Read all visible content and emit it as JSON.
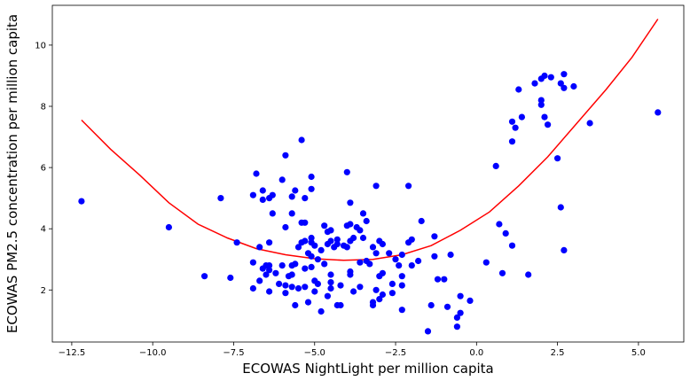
{
  "chart_data": {
    "type": "scatter",
    "title": "",
    "xlabel": "ECOWAS NightLight per million capita",
    "ylabel": "ECOWAS PM2.5 concentration per million capita",
    "xlim": [
      -13.1,
      6.4
    ],
    "ylim": [
      0.3,
      11.3
    ],
    "grid": false,
    "x_ticks": [
      -12.5,
      -10.0,
      -7.5,
      -5.0,
      -2.5,
      0.0,
      2.5,
      5.0
    ],
    "x_tick_labels": [
      "−12.5",
      "−10.0",
      "−7.5",
      "−5.0",
      "−2.5",
      "0.0",
      "2.5",
      "5.0"
    ],
    "y_ticks": [
      2,
      4,
      6,
      8,
      10
    ],
    "y_tick_labels": [
      "2",
      "4",
      "6",
      "8",
      "10"
    ],
    "colors": {
      "points": "#0000ff",
      "fit_line": "#ff0000"
    },
    "series": [
      {
        "kind": "scatter",
        "points": [
          [
            -12.2,
            4.9
          ],
          [
            -9.5,
            4.05
          ],
          [
            -8.4,
            2.45
          ],
          [
            -7.9,
            5.0
          ],
          [
            -7.6,
            2.4
          ],
          [
            -7.4,
            3.55
          ],
          [
            -6.9,
            5.1
          ],
          [
            -6.9,
            2.9
          ],
          [
            -6.9,
            2.05
          ],
          [
            -6.8,
            5.8
          ],
          [
            -6.7,
            3.4
          ],
          [
            -6.7,
            2.3
          ],
          [
            -6.6,
            5.25
          ],
          [
            -6.6,
            4.95
          ],
          [
            -6.6,
            2.7
          ],
          [
            -6.5,
            2.5
          ],
          [
            -6.5,
            2.8
          ],
          [
            -6.4,
            5.0
          ],
          [
            -6.4,
            3.55
          ],
          [
            -6.4,
            2.8
          ],
          [
            -6.4,
            2.65
          ],
          [
            -6.4,
            1.95
          ],
          [
            -6.3,
            5.1
          ],
          [
            -6.3,
            4.5
          ],
          [
            -6.2,
            2.55
          ],
          [
            -6.1,
            2.2
          ],
          [
            -6.0,
            5.6
          ],
          [
            -6.0,
            2.8
          ],
          [
            -5.9,
            6.4
          ],
          [
            -5.9,
            4.05
          ],
          [
            -5.9,
            2.15
          ],
          [
            -5.9,
            1.9
          ],
          [
            -5.8,
            2.45
          ],
          [
            -5.7,
            5.05
          ],
          [
            -5.7,
            4.5
          ],
          [
            -5.7,
            2.8
          ],
          [
            -5.7,
            2.5
          ],
          [
            -5.7,
            2.1
          ],
          [
            -5.6,
            5.25
          ],
          [
            -5.6,
            2.85
          ],
          [
            -5.6,
            1.5
          ],
          [
            -5.5,
            3.4
          ],
          [
            -5.5,
            2.05
          ],
          [
            -5.4,
            6.9
          ],
          [
            -5.4,
            4.2
          ],
          [
            -5.4,
            3.55
          ],
          [
            -5.3,
            5.0
          ],
          [
            -5.3,
            4.2
          ],
          [
            -5.3,
            3.6
          ],
          [
            -5.3,
            2.7
          ],
          [
            -5.3,
            2.1
          ],
          [
            -5.2,
            3.2
          ],
          [
            -5.2,
            1.6
          ],
          [
            -5.1,
            5.7
          ],
          [
            -5.1,
            5.3
          ],
          [
            -5.1,
            3.7
          ],
          [
            -5.1,
            3.55
          ],
          [
            -5.1,
            3.1
          ],
          [
            -5.1,
            2.75
          ],
          [
            -5.0,
            3.45
          ],
          [
            -5.0,
            2.3
          ],
          [
            -5.0,
            1.95
          ],
          [
            -4.9,
            3.0
          ],
          [
            -4.9,
            2.2
          ],
          [
            -4.8,
            1.3
          ],
          [
            -4.8,
            3.3
          ],
          [
            -4.7,
            4.1
          ],
          [
            -4.7,
            2.85
          ],
          [
            -4.6,
            3.9
          ],
          [
            -4.6,
            3.5
          ],
          [
            -4.6,
            1.8
          ],
          [
            -4.5,
            3.95
          ],
          [
            -4.5,
            3.6
          ],
          [
            -4.5,
            2.5
          ],
          [
            -4.5,
            2.25
          ],
          [
            -4.5,
            2.05
          ],
          [
            -4.4,
            3.4
          ],
          [
            -4.3,
            1.5
          ],
          [
            -4.3,
            3.65
          ],
          [
            -4.3,
            3.5
          ],
          [
            -4.2,
            1.5
          ],
          [
            -4.2,
            2.15
          ],
          [
            -4.1,
            3.45
          ],
          [
            -4.0,
            5.85
          ],
          [
            -4.0,
            4.1
          ],
          [
            -4.0,
            3.4
          ],
          [
            -3.9,
            4.85
          ],
          [
            -3.9,
            4.15
          ],
          [
            -3.9,
            3.6
          ],
          [
            -3.9,
            2.6
          ],
          [
            -3.9,
            2.5
          ],
          [
            -3.8,
            3.7
          ],
          [
            -3.8,
            1.95
          ],
          [
            -3.7,
            4.05
          ],
          [
            -3.6,
            3.95
          ],
          [
            -3.6,
            2.1
          ],
          [
            -3.6,
            2.9
          ],
          [
            -3.5,
            4.5
          ],
          [
            -3.5,
            3.7
          ],
          [
            -3.4,
            4.25
          ],
          [
            -3.4,
            2.95
          ],
          [
            -3.3,
            2.85
          ],
          [
            -3.2,
            3.4
          ],
          [
            -3.2,
            1.6
          ],
          [
            -3.2,
            1.5
          ],
          [
            -3.1,
            5.4
          ],
          [
            -3.1,
            3.2
          ],
          [
            -3.1,
            2.0
          ],
          [
            -3.0,
            3.6
          ],
          [
            -3.0,
            2.45
          ],
          [
            -3.0,
            1.7
          ],
          [
            -2.9,
            3.5
          ],
          [
            -2.9,
            2.55
          ],
          [
            -2.9,
            1.85
          ],
          [
            -2.7,
            3.2
          ],
          [
            -2.6,
            2.2
          ],
          [
            -2.6,
            1.9
          ],
          [
            -2.5,
            3.0
          ],
          [
            -2.4,
            2.8
          ],
          [
            -2.3,
            3.15
          ],
          [
            -2.3,
            2.45
          ],
          [
            -2.3,
            2.15
          ],
          [
            -2.3,
            1.35
          ],
          [
            -2.1,
            5.4
          ],
          [
            -2.1,
            3.55
          ],
          [
            -2.0,
            3.65
          ],
          [
            -2.0,
            2.8
          ],
          [
            -1.8,
            2.95
          ],
          [
            -1.7,
            4.25
          ],
          [
            -1.5,
            0.65
          ],
          [
            -1.4,
            1.5
          ],
          [
            -1.3,
            3.75
          ],
          [
            -1.3,
            3.1
          ],
          [
            -1.2,
            2.35
          ],
          [
            -1.0,
            2.35
          ],
          [
            -0.9,
            1.45
          ],
          [
            -0.8,
            3.15
          ],
          [
            -0.6,
            1.1
          ],
          [
            -0.6,
            0.8
          ],
          [
            -0.5,
            1.25
          ],
          [
            -0.5,
            1.8
          ],
          [
            -0.2,
            1.65
          ],
          [
            0.3,
            2.9
          ],
          [
            0.6,
            6.05
          ],
          [
            0.7,
            4.15
          ],
          [
            0.8,
            2.55
          ],
          [
            0.9,
            3.85
          ],
          [
            1.1,
            7.5
          ],
          [
            1.1,
            6.85
          ],
          [
            1.1,
            3.45
          ],
          [
            1.2,
            7.3
          ],
          [
            1.3,
            8.55
          ],
          [
            1.4,
            7.65
          ],
          [
            1.6,
            2.5
          ],
          [
            1.8,
            8.75
          ],
          [
            2.0,
            8.2
          ],
          [
            2.0,
            8.05
          ],
          [
            2.0,
            8.9
          ],
          [
            2.1,
            7.65
          ],
          [
            2.1,
            9.0
          ],
          [
            2.2,
            7.4
          ],
          [
            2.3,
            8.95
          ],
          [
            2.5,
            6.3
          ],
          [
            2.6,
            8.75
          ],
          [
            2.6,
            4.7
          ],
          [
            2.7,
            9.05
          ],
          [
            2.7,
            8.6
          ],
          [
            2.7,
            3.3
          ],
          [
            3.0,
            8.65
          ],
          [
            3.5,
            7.45
          ],
          [
            5.6,
            7.8
          ]
        ]
      },
      {
        "kind": "line",
        "points": [
          [
            -12.2,
            7.55
          ],
          [
            -11.3,
            6.6
          ],
          [
            -10.4,
            5.75
          ],
          [
            -9.5,
            4.85
          ],
          [
            -8.6,
            4.15
          ],
          [
            -7.7,
            3.7
          ],
          [
            -6.8,
            3.35
          ],
          [
            -5.9,
            3.15
          ],
          [
            -5.0,
            3.02
          ],
          [
            -4.1,
            2.97
          ],
          [
            -3.2,
            3.0
          ],
          [
            -2.3,
            3.15
          ],
          [
            -1.4,
            3.45
          ],
          [
            -0.5,
            3.95
          ],
          [
            0.4,
            4.55
          ],
          [
            1.3,
            5.4
          ],
          [
            2.2,
            6.35
          ],
          [
            3.1,
            7.45
          ],
          [
            4.0,
            8.55
          ],
          [
            4.8,
            9.6
          ],
          [
            5.6,
            10.85
          ]
        ]
      }
    ]
  }
}
